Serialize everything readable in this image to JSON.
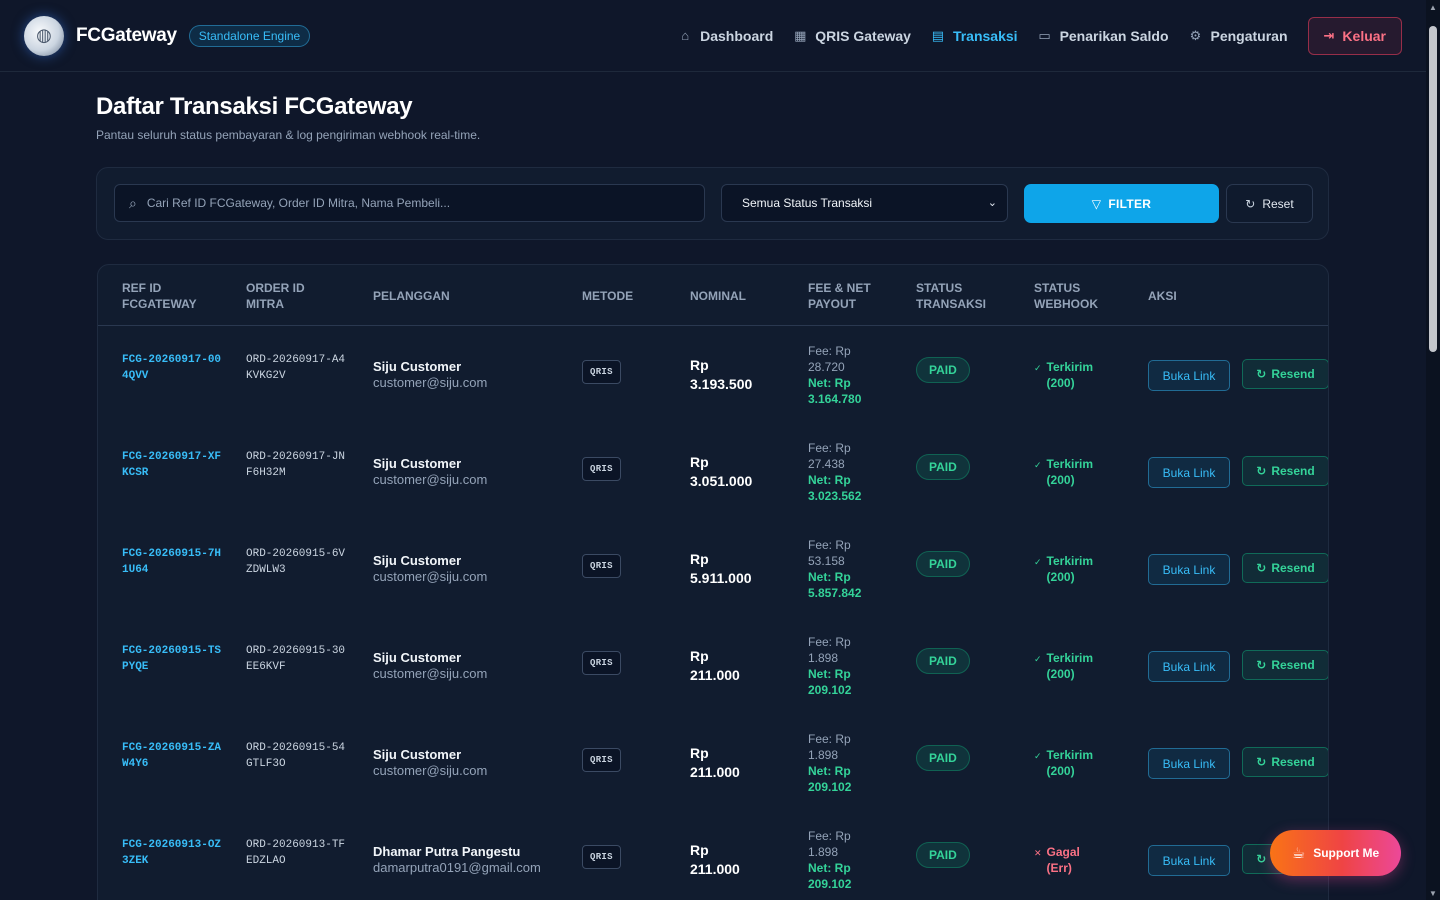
{
  "navbar": {
    "brand": "FCGateway",
    "badge": "Standalone Engine",
    "links": [
      {
        "label": "Dashboard",
        "icon": "home-icon",
        "glyph": "⌂"
      },
      {
        "label": "QRIS Gateway",
        "icon": "qr-code-icon",
        "glyph": "▦"
      },
      {
        "label": "Transaksi",
        "icon": "clipboard-icon",
        "glyph": "▤"
      },
      {
        "label": "Penarikan Saldo",
        "icon": "wallet-icon",
        "glyph": "▭"
      },
      {
        "label": "Pengaturan",
        "icon": "gear-icon",
        "glyph": "⚙"
      }
    ],
    "active": "Transaksi",
    "logout_label": "Keluar"
  },
  "page": {
    "title": "Daftar Transaksi FCGateway",
    "subtitle": "Pantau seluruh status pembayaran & log pengiriman webhook real-time."
  },
  "filter": {
    "search_placeholder": "Cari Ref ID FCGateway, Order ID Mitra, Nama Pembeli...",
    "status_selected": "Semua Status Transaksi",
    "filter_label": "FILTER",
    "reset_label": "Reset"
  },
  "table": {
    "headers": {
      "ref_line1": "REF ID",
      "ref_line2": "FCGATEWAY",
      "order_line1": "ORDER ID",
      "order_line2": "MITRA",
      "customer": "PELANGGAN",
      "method": "METODE",
      "nominal": "NOMINAL",
      "fee_line1": "FEE & NET",
      "fee_line2": "PAYOUT",
      "status_line1": "STATUS",
      "status_line2": "TRANSAKSI",
      "webhook_line1": "STATUS",
      "webhook_line2": "WEBHOOK",
      "action": "AKSI"
    },
    "rows": [
      {
        "ref": "FCG-20260917-004QVV",
        "order": "ORD-20260917-A4KVKG2V",
        "name": "Siju Customer",
        "email": "customer@siju.com",
        "method": "QRIS",
        "currency": "Rp",
        "nominal": "3.193.500",
        "fee_label": "Fee: Rp",
        "fee": "28.720",
        "net_label": "Net: Rp",
        "net": "3.164.780",
        "status": "PAID",
        "webhook_state": "ok",
        "webhook_line1": "Terkirim",
        "webhook_line2": "(200)",
        "open_label": "Buka Link",
        "resend_label": "Resend"
      },
      {
        "ref": "FCG-20260917-XFKCSR",
        "order": "ORD-20260917-JNF6H32M",
        "name": "Siju Customer",
        "email": "customer@siju.com",
        "method": "QRIS",
        "currency": "Rp",
        "nominal": "3.051.000",
        "fee_label": "Fee: Rp",
        "fee": "27.438",
        "net_label": "Net: Rp",
        "net": "3.023.562",
        "status": "PAID",
        "webhook_state": "ok",
        "webhook_line1": "Terkirim",
        "webhook_line2": "(200)",
        "open_label": "Buka Link",
        "resend_label": "Resend"
      },
      {
        "ref": "FCG-20260915-7H1U64",
        "order": "ORD-20260915-6VZDWLW3",
        "name": "Siju Customer",
        "email": "customer@siju.com",
        "method": "QRIS",
        "currency": "Rp",
        "nominal": "5.911.000",
        "fee_label": "Fee: Rp",
        "fee": "53.158",
        "net_label": "Net: Rp",
        "net": "5.857.842",
        "status": "PAID",
        "webhook_state": "ok",
        "webhook_line1": "Terkirim",
        "webhook_line2": "(200)",
        "open_label": "Buka Link",
        "resend_label": "Resend"
      },
      {
        "ref": "FCG-20260915-TSPYQE",
        "order": "ORD-20260915-30EE6KVF",
        "name": "Siju Customer",
        "email": "customer@siju.com",
        "method": "QRIS",
        "currency": "Rp",
        "nominal": "211.000",
        "fee_label": "Fee: Rp",
        "fee": "1.898",
        "net_label": "Net: Rp",
        "net": "209.102",
        "status": "PAID",
        "webhook_state": "ok",
        "webhook_line1": "Terkirim",
        "webhook_line2": "(200)",
        "open_label": "Buka Link",
        "resend_label": "Resend"
      },
      {
        "ref": "FCG-20260915-ZAW4Y6",
        "order": "ORD-20260915-54GTLF3O",
        "name": "Siju Customer",
        "email": "customer@siju.com",
        "method": "QRIS",
        "currency": "Rp",
        "nominal": "211.000",
        "fee_label": "Fee: Rp",
        "fee": "1.898",
        "net_label": "Net: Rp",
        "net": "209.102",
        "status": "PAID",
        "webhook_state": "ok",
        "webhook_line1": "Terkirim",
        "webhook_line2": "(200)",
        "open_label": "Buka Link",
        "resend_label": "Resend"
      },
      {
        "ref": "FCG-20260913-OZ3ZEK",
        "order": "ORD-20260913-TFEDZLAO",
        "name": "Dhamar Putra Pangestu",
        "email": "damarputra0191@gmail.com",
        "method": "QRIS",
        "currency": "Rp",
        "nominal": "211.000",
        "fee_label": "Fee: Rp",
        "fee": "1.898",
        "net_label": "Net: Rp",
        "net": "209.102",
        "status": "PAID",
        "webhook_state": "err",
        "webhook_line1": "Gagal",
        "webhook_line2": "(Err)",
        "open_label": "Buka Link",
        "resend_label": "Resend"
      }
    ]
  },
  "support": {
    "label": "Support Me",
    "icon": "coffee-icon"
  },
  "colors": {
    "accent": "#0ea5e9",
    "success": "#34d399",
    "danger": "#fb7185",
    "background": "#0f172a"
  }
}
